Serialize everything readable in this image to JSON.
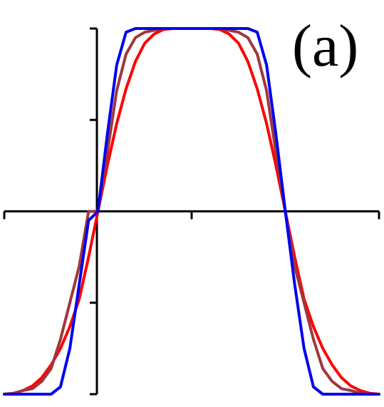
{
  "panel_label": "(a)",
  "chart_data": {
    "type": "line",
    "title": "",
    "xlabel": "",
    "ylabel": "",
    "xlim": [
      -1.0,
      1.0
    ],
    "ylim": [
      -1.0,
      1.0
    ],
    "x_ticks": [
      -1.0,
      0.0,
      1.0
    ],
    "y_ticks": [
      -1.0,
      -0.5,
      0.0,
      0.5,
      1.0
    ],
    "tick_labels_shown": false,
    "grid": false,
    "legend": "none",
    "axis_color": "#000000",
    "series": [
      {
        "color": "#ff0000",
        "x": [
          -1.0,
          -0.95,
          -0.9,
          -0.85,
          -0.8,
          -0.75,
          -0.7,
          -0.65,
          -0.6,
          -0.55,
          -0.5,
          -0.45,
          -0.4,
          -0.35,
          -0.3,
          -0.25,
          -0.2,
          -0.15,
          -0.1,
          -0.05,
          0.0,
          0.05,
          0.1,
          0.15,
          0.2,
          0.25,
          0.3,
          0.35,
          0.4,
          0.45,
          0.5,
          0.55,
          0.6,
          0.65,
          0.7,
          0.75,
          0.8,
          0.85,
          0.9,
          0.95,
          1.0
        ],
        "values": [
          -1.0,
          -0.995,
          -0.98,
          -0.955,
          -0.91,
          -0.84,
          -0.75,
          -0.63,
          -0.48,
          -0.25,
          0.0,
          0.25,
          0.48,
          0.67,
          0.82,
          0.92,
          0.97,
          0.995,
          1.0,
          1.0,
          1.0,
          1.0,
          1.0,
          0.995,
          0.97,
          0.92,
          0.82,
          0.67,
          0.48,
          0.25,
          0.0,
          -0.25,
          -0.48,
          -0.63,
          -0.75,
          -0.84,
          -0.91,
          -0.955,
          -0.98,
          -0.995,
          -1.0
        ]
      },
      {
        "color": "#a0373c",
        "x": [
          -1.0,
          -0.95,
          -0.9,
          -0.85,
          -0.8,
          -0.75,
          -0.7,
          -0.65,
          -0.6,
          -0.55,
          -0.5,
          -0.45,
          -0.4,
          -0.35,
          -0.3,
          -0.25,
          -0.2,
          -0.15,
          -0.1,
          -0.05,
          0.0,
          0.05,
          0.1,
          0.15,
          0.2,
          0.25,
          0.3,
          0.35,
          0.4,
          0.45,
          0.5,
          0.55,
          0.6,
          0.65,
          0.7,
          0.75,
          0.8,
          0.85,
          0.9,
          0.95,
          1.0
        ],
        "values": [
          -1.0,
          -0.995,
          -0.98,
          -0.97,
          -0.93,
          -0.86,
          -0.7,
          -0.5,
          -0.3,
          0.0,
          0.0,
          0.32,
          0.66,
          0.86,
          0.95,
          0.98,
          0.99,
          1.0,
          1.0,
          1.0,
          1.0,
          1.0,
          1.0,
          1.0,
          0.99,
          0.98,
          0.95,
          0.86,
          0.66,
          0.32,
          0.0,
          -0.3,
          -0.5,
          -0.7,
          -0.86,
          -0.93,
          -0.97,
          -0.98,
          -0.995,
          -1.0,
          -1.0
        ]
      },
      {
        "color": "#0000ee",
        "x": [
          -1.0,
          -0.95,
          -0.9,
          -0.85,
          -0.8,
          -0.75,
          -0.7,
          -0.65,
          -0.6,
          -0.55,
          -0.5,
          -0.45,
          -0.4,
          -0.35,
          -0.3,
          -0.25,
          -0.2,
          -0.15,
          -0.1,
          -0.05,
          0.0,
          0.05,
          0.1,
          0.15,
          0.2,
          0.25,
          0.3,
          0.35,
          0.4,
          0.45,
          0.5,
          0.55,
          0.6,
          0.65,
          0.7,
          0.75,
          0.8,
          0.85,
          0.9,
          0.95,
          1.0
        ],
        "values": [
          -1.0,
          -1.0,
          -1.0,
          -1.0,
          -1.0,
          -1.0,
          -0.96,
          -0.75,
          -0.4,
          -0.05,
          0.0,
          0.42,
          0.8,
          0.98,
          1.0,
          1.0,
          1.0,
          1.0,
          1.0,
          1.0,
          1.0,
          1.0,
          1.0,
          1.0,
          1.0,
          1.0,
          1.0,
          0.98,
          0.8,
          0.42,
          0.0,
          -0.4,
          -0.75,
          -0.96,
          -1.0,
          -1.0,
          -1.0,
          -1.0,
          -1.0,
          -1.0,
          -1.0
        ]
      }
    ]
  }
}
